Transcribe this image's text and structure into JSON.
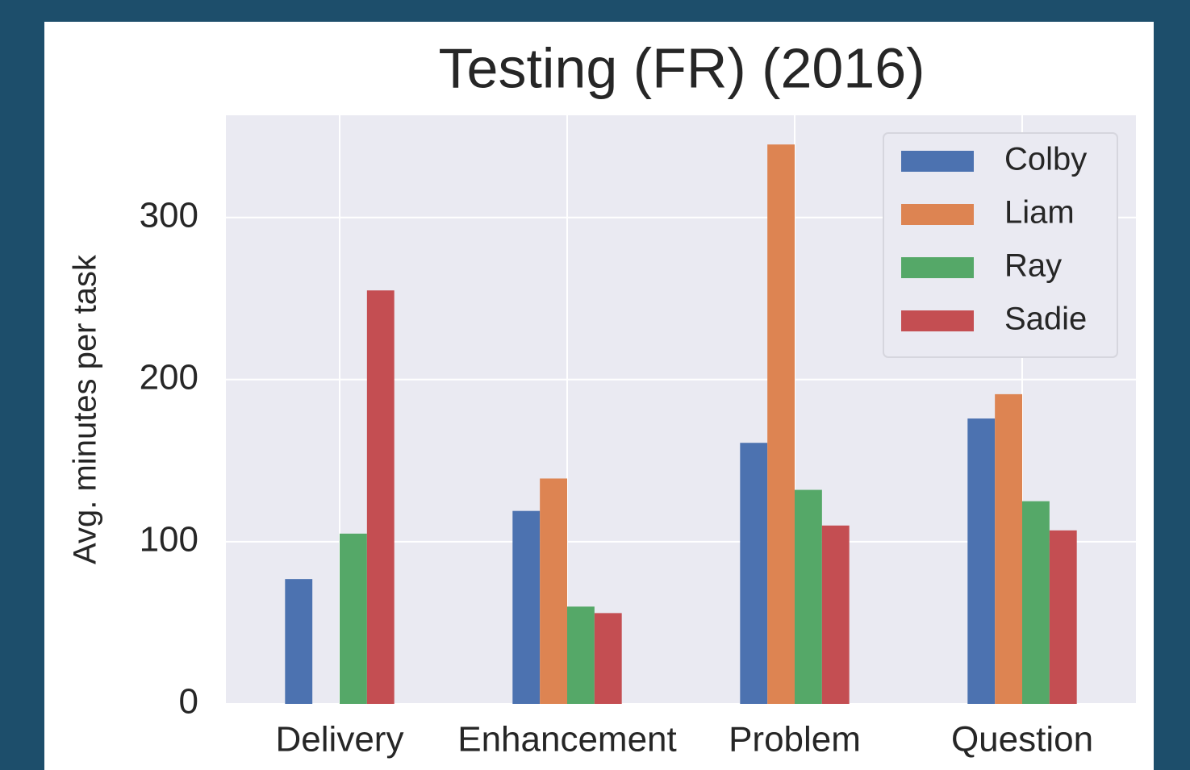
{
  "chart_data": {
    "type": "bar",
    "title": "Testing (FR) (2016)",
    "y_label": "Avg. minutes per task",
    "categories": [
      "Delivery",
      "Enhancement",
      "Problem",
      "Question"
    ],
    "series": [
      {
        "name": "Colby",
        "color": "#4c72b0",
        "values": [
          77,
          119,
          161,
          176
        ]
      },
      {
        "name": "Liam",
        "color": "#dd8452",
        "values": [
          0,
          139,
          345,
          191
        ]
      },
      {
        "name": "Ray",
        "color": "#55a868",
        "values": [
          105,
          60,
          132,
          125
        ]
      },
      {
        "name": "Sadie",
        "color": "#c44e52",
        "values": [
          255,
          56,
          110,
          107
        ]
      }
    ],
    "ylim": [
      0,
      363
    ],
    "yticks": [
      0,
      100,
      200,
      300
    ],
    "grid": true,
    "legend": "upper right"
  }
}
